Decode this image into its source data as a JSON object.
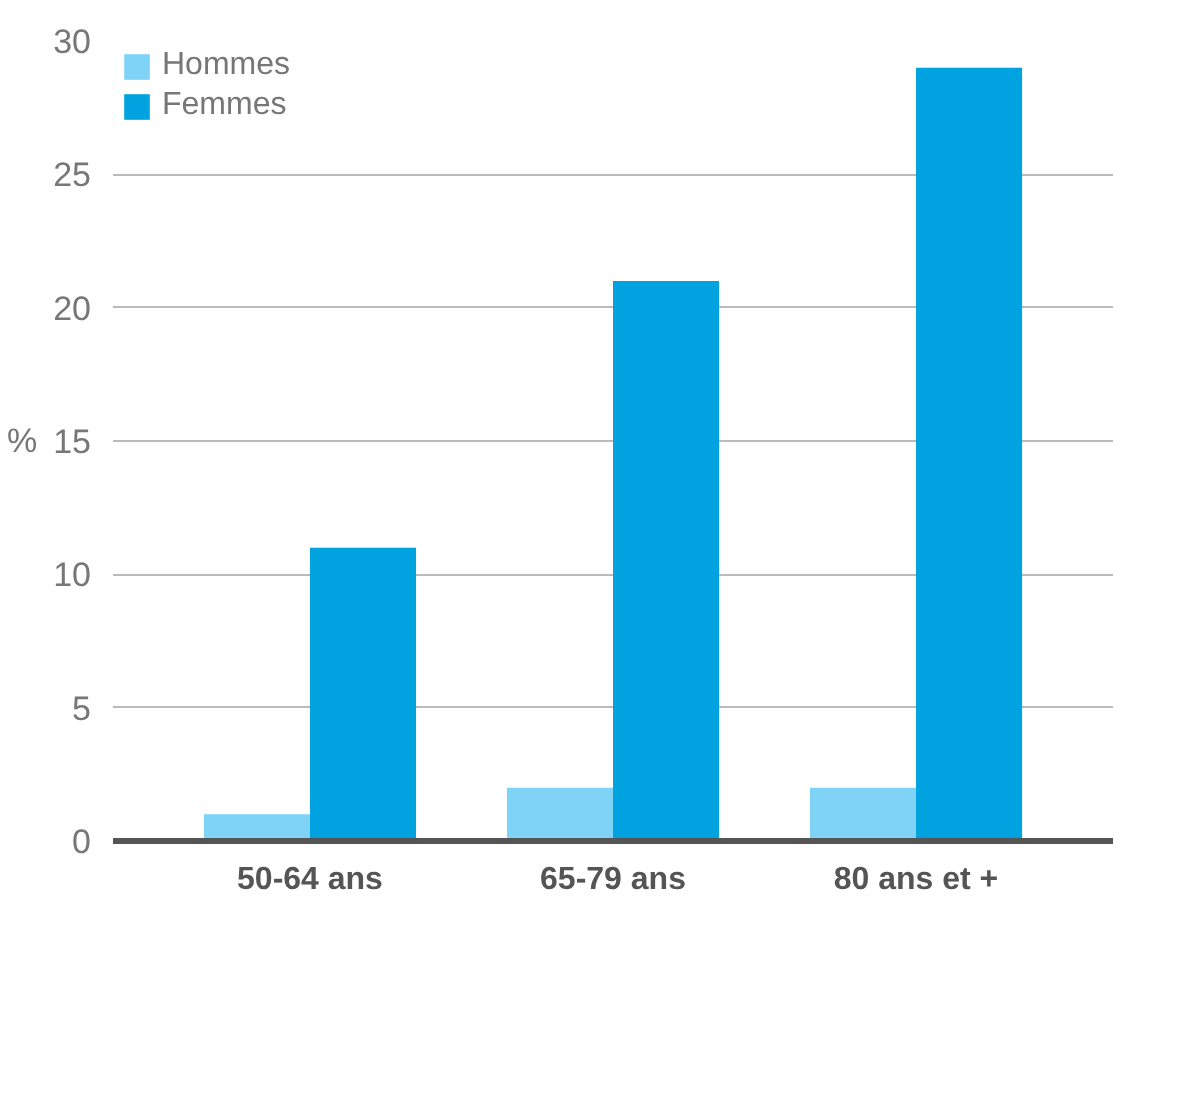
{
  "chart_data": {
    "type": "bar",
    "ylabel": "%",
    "categories": [
      "50-64 ans",
      "65-79 ans",
      "80 ans et +"
    ],
    "series": [
      {
        "name": "Hommes",
        "color": "#7fd3f7",
        "values": [
          1,
          2,
          2
        ]
      },
      {
        "name": "Femmes",
        "color": "#00a3e0",
        "values": [
          11,
          21,
          29
        ]
      }
    ],
    "ylim": [
      0,
      30
    ],
    "yticks": [
      0,
      5,
      10,
      15,
      20,
      25,
      30
    ],
    "grid": "y",
    "legend": "top left"
  }
}
